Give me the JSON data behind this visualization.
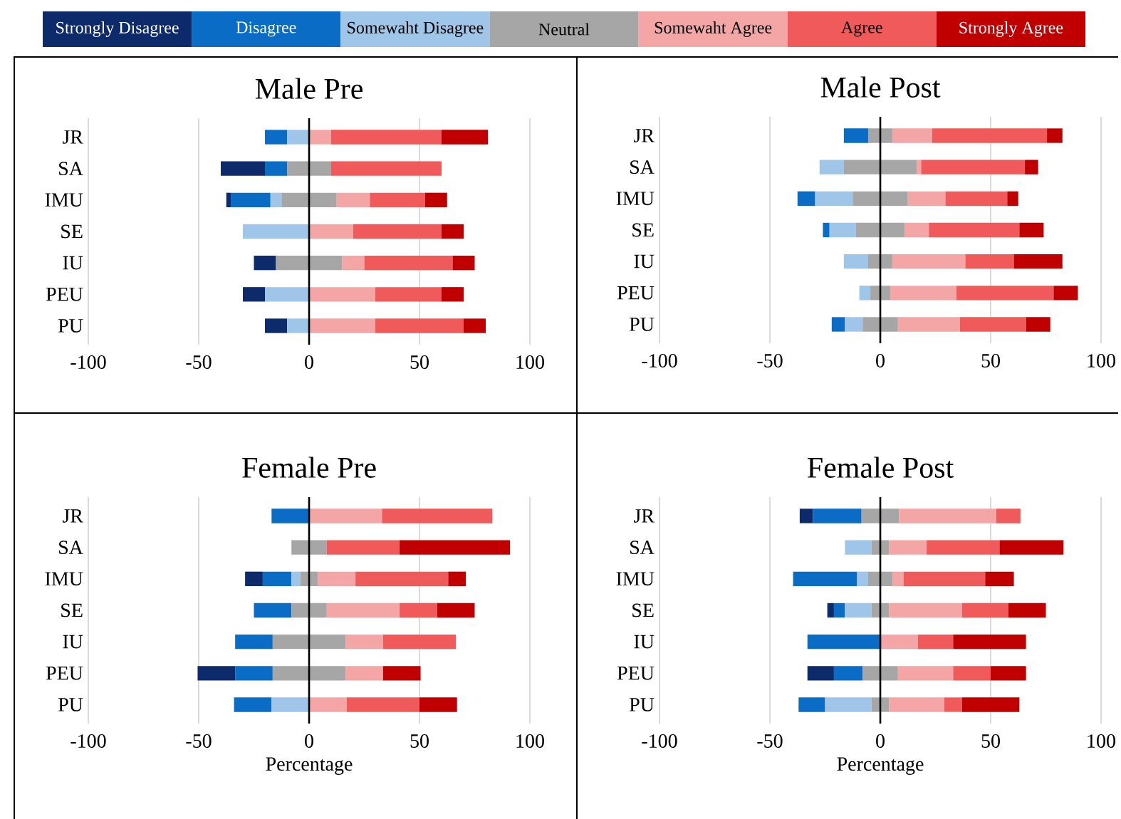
{
  "chart_data": [
    {
      "type": "bar",
      "title": "Male Pre",
      "orientation": "horizontal",
      "grid": "x",
      "legend": "top",
      "xlim": [
        -100,
        100
      ],
      "xticks": [
        -100,
        -50,
        0,
        50,
        100
      ],
      "categories": [
        "JR",
        "SA",
        "IMU",
        "SE",
        "IU",
        "PEU",
        "PU"
      ],
      "series": [
        {
          "name": "Strongly Disagree",
          "color": "#0d2a6b",
          "values": [
            null,
            20,
            2,
            null,
            10,
            10,
            10
          ],
          "base": [
            null,
            -40,
            -37.5,
            null,
            -25,
            -30,
            -20
          ]
        },
        {
          "name": "Disagree",
          "color": "#0a6cc4",
          "values": [
            10,
            10,
            18,
            null,
            null,
            null,
            null
          ],
          "base": [
            -20,
            -20,
            -35.5,
            null,
            null,
            null,
            null
          ]
        },
        {
          "name": "Somewaht Disagree",
          "color": "#9fc5e8",
          "values": [
            10,
            null,
            5,
            30,
            null,
            20,
            10
          ],
          "base": [
            -10,
            null,
            -17.5,
            -30,
            null,
            -20,
            -10
          ]
        },
        {
          "name": "Neutral",
          "color": "#a6a6a6",
          "values": [
            null,
            20,
            25,
            null,
            30,
            null,
            null
          ],
          "base": [
            null,
            -10,
            -12.5,
            null,
            -15,
            null,
            null
          ]
        },
        {
          "name": "Somewaht Agree",
          "color": "#f4a6a6",
          "values": [
            10,
            null,
            15,
            20,
            10,
            30,
            30
          ],
          "base": [
            0,
            null,
            12.5,
            0,
            15,
            0,
            0
          ]
        },
        {
          "name": "Agree",
          "color": "#f05a5a",
          "values": [
            50,
            50,
            25,
            40,
            40,
            30,
            40
          ],
          "base": [
            10,
            10,
            27.5,
            20,
            25,
            30,
            30
          ]
        },
        {
          "name": "Strongly Agree",
          "color": "#c00000",
          "values": [
            21,
            null,
            10,
            10,
            10,
            10,
            10
          ],
          "base": [
            60,
            null,
            52.5,
            60,
            65,
            60,
            70
          ]
        }
      ]
    },
    {
      "type": "bar",
      "title": "Male Post",
      "orientation": "horizontal",
      "grid": "x",
      "xlim": [
        -100,
        100
      ],
      "xticks": [
        -100,
        -50,
        0,
        50,
        100
      ],
      "categories": [
        "JR",
        "SA",
        "IMU",
        "SE",
        "IU",
        "PEU",
        "PU"
      ],
      "series": [
        {
          "color": "#0d2a6b",
          "values": [
            null,
            null,
            null,
            null,
            null,
            null,
            null
          ],
          "base": [
            null,
            null,
            null,
            null,
            null,
            null,
            null
          ]
        },
        {
          "color": "#0a6cc4",
          "values": [
            11,
            null,
            8,
            3,
            null,
            null,
            6
          ],
          "base": [
            -16.5,
            null,
            -37.5,
            -26,
            null,
            null,
            -22
          ]
        },
        {
          "color": "#9fc5e8",
          "values": [
            null,
            11,
            17,
            12,
            11,
            5,
            8
          ],
          "base": [
            null,
            -27.5,
            -29.5,
            -23,
            -16.5,
            -9.5,
            -16
          ]
        },
        {
          "color": "#a6a6a6",
          "values": [
            11,
            33,
            25,
            22,
            11,
            9,
            16
          ],
          "base": [
            -5.5,
            -16.5,
            -12.5,
            -11,
            -5.5,
            -4.5,
            -8
          ]
        },
        {
          "color": "#f4a6a6",
          "values": [
            18,
            2,
            17,
            11,
            33,
            30,
            28
          ],
          "base": [
            5.5,
            16.5,
            12.5,
            11,
            5.5,
            4.5,
            8
          ]
        },
        {
          "color": "#f05a5a",
          "values": [
            52,
            47,
            28,
            41,
            22,
            44,
            30
          ],
          "base": [
            23.5,
            18.5,
            29.5,
            22,
            38.5,
            34.5,
            36
          ]
        },
        {
          "color": "#c00000",
          "values": [
            7,
            6,
            5,
            11,
            22,
            11,
            11
          ],
          "base": [
            75.5,
            65.5,
            57.5,
            63,
            60.5,
            78.5,
            66
          ]
        }
      ]
    },
    {
      "type": "bar",
      "title": "Female Pre",
      "xlabel": "Percentage",
      "orientation": "horizontal",
      "grid": "x",
      "xlim": [
        -100,
        100
      ],
      "xticks": [
        -100,
        -50,
        0,
        50,
        100
      ],
      "categories": [
        "JR",
        "SA",
        "IMU",
        "SE",
        "IU",
        "PEU",
        "PU"
      ],
      "series": [
        {
          "color": "#0d2a6b",
          "values": [
            null,
            null,
            8,
            null,
            null,
            17,
            null
          ],
          "base": [
            null,
            null,
            -29,
            null,
            null,
            -50.5,
            null
          ]
        },
        {
          "color": "#0a6cc4",
          "values": [
            17,
            null,
            13,
            17,
            17,
            17,
            17
          ],
          "base": [
            -17,
            null,
            -21,
            -25,
            -33.5,
            -33.5,
            -34
          ]
        },
        {
          "color": "#9fc5e8",
          "values": [
            null,
            null,
            4,
            null,
            null,
            null,
            17
          ],
          "base": [
            null,
            null,
            -8,
            null,
            null,
            null,
            -17
          ]
        },
        {
          "color": "#a6a6a6",
          "values": [
            null,
            16,
            8,
            16,
            33,
            33,
            null
          ],
          "base": [
            null,
            -8,
            -4,
            -8,
            -16.5,
            -16.5,
            null
          ]
        },
        {
          "color": "#f4a6a6",
          "values": [
            33,
            null,
            17,
            33,
            17,
            17,
            17
          ],
          "base": [
            0,
            null,
            4,
            8,
            16.5,
            16.5,
            0
          ]
        },
        {
          "color": "#f05a5a",
          "values": [
            50,
            33,
            42,
            17,
            33,
            null,
            33
          ],
          "base": [
            33,
            8,
            21,
            41,
            33.5,
            null,
            17
          ]
        },
        {
          "color": "#c00000",
          "values": [
            null,
            50,
            8,
            17,
            null,
            17,
            17
          ],
          "base": [
            null,
            41,
            63,
            58,
            null,
            33.5,
            50
          ]
        }
      ]
    },
    {
      "type": "bar",
      "title": "Female Post",
      "xlabel": "Percentage",
      "orientation": "horizontal",
      "grid": "x",
      "xlim": [
        -100,
        100
      ],
      "xticks": [
        -100,
        -50,
        0,
        50,
        100
      ],
      "categories": [
        "JR",
        "SA",
        "IMU",
        "SE",
        "IU",
        "PEU",
        "PU"
      ],
      "series": [
        {
          "color": "#0d2a6b",
          "values": [
            6,
            null,
            null,
            3,
            null,
            12,
            null
          ],
          "base": [
            -36.5,
            null,
            null,
            -24,
            null,
            -33,
            null
          ]
        },
        {
          "color": "#0a6cc4",
          "values": [
            22,
            null,
            29,
            5,
            33,
            13,
            12
          ],
          "base": [
            -30.5,
            null,
            -39.5,
            -21,
            -33,
            -21,
            -37
          ]
        },
        {
          "color": "#9fc5e8",
          "values": [
            null,
            12,
            5,
            12,
            null,
            null,
            21
          ],
          "base": [
            null,
            -16,
            -10.5,
            -16,
            null,
            null,
            -25
          ]
        },
        {
          "color": "#a6a6a6",
          "values": [
            17,
            8,
            11,
            8,
            null,
            16,
            8
          ],
          "base": [
            -8.5,
            -4,
            -5.5,
            -4,
            null,
            -8,
            -4
          ]
        },
        {
          "color": "#f4a6a6",
          "values": [
            44,
            17,
            5,
            33,
            17,
            25,
            25
          ],
          "base": [
            8.5,
            4,
            5.5,
            4,
            0,
            8,
            4
          ]
        },
        {
          "color": "#f05a5a",
          "values": [
            11,
            33,
            37,
            21,
            16,
            17,
            8
          ],
          "base": [
            52.5,
            21,
            10.5,
            37,
            17,
            33,
            29
          ]
        },
        {
          "color": "#c00000",
          "values": [
            null,
            29,
            13,
            17,
            33,
            16,
            26
          ],
          "base": [
            null,
            54,
            47.5,
            58,
            33,
            50,
            37
          ]
        }
      ]
    }
  ]
}
